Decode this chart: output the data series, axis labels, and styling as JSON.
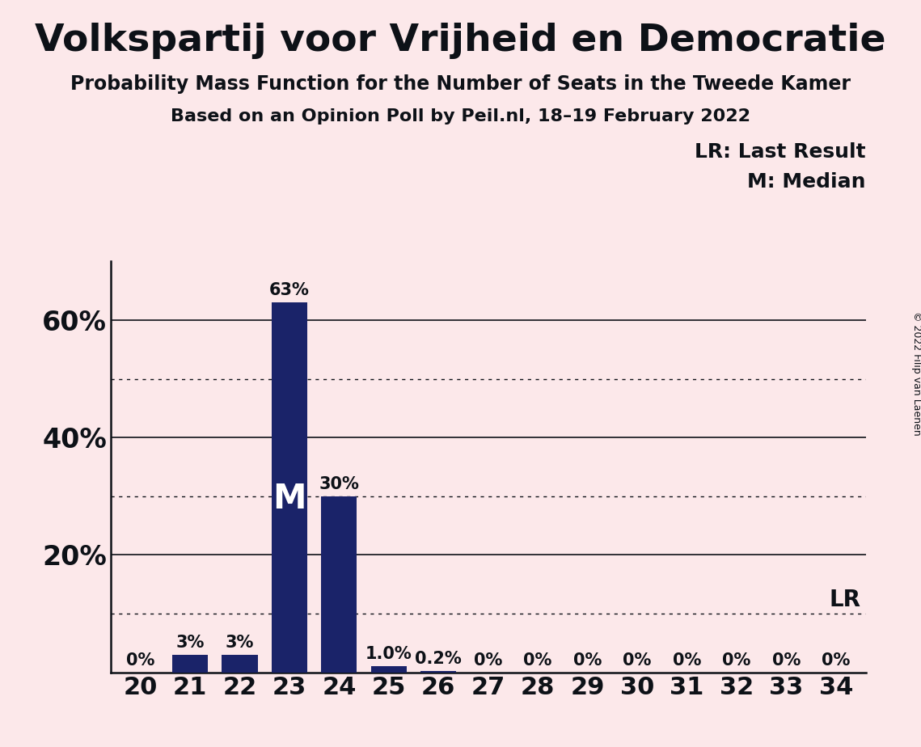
{
  "title": "Volkspartij voor Vrijheid en Democratie",
  "subtitle": "Probability Mass Function for the Number of Seats in the Tweede Kamer",
  "subsubtitle": "Based on an Opinion Poll by Peil.nl, 18–19 February 2022",
  "copyright": "© 2022 Filip van Laenen",
  "categories": [
    20,
    21,
    22,
    23,
    24,
    25,
    26,
    27,
    28,
    29,
    30,
    31,
    32,
    33,
    34
  ],
  "values": [
    0.0,
    3.0,
    3.0,
    63.0,
    30.0,
    1.0,
    0.2,
    0.0,
    0.0,
    0.0,
    0.0,
    0.0,
    0.0,
    0.0,
    0.0
  ],
  "bar_color": "#1a2369",
  "background_color": "#fce8ea",
  "text_color": "#0d1117",
  "ylim": [
    0,
    70
  ],
  "yticks": [
    20,
    40,
    60
  ],
  "ytick_labels": [
    "20%",
    "40%",
    "60%"
  ],
  "dotted_lines": [
    10,
    30,
    50
  ],
  "solid_lines": [
    20,
    40,
    60
  ],
  "median_seat": 23,
  "median_label": "M",
  "lr_value": 10,
  "lr_label": "LR",
  "legend_lr": "LR: Last Result",
  "legend_m": "M: Median",
  "bar_labels": [
    "0%",
    "3%",
    "3%",
    "63%",
    "30%",
    "1.0%",
    "0.2%",
    "0%",
    "0%",
    "0%",
    "0%",
    "0%",
    "0%",
    "0%",
    "0%"
  ]
}
